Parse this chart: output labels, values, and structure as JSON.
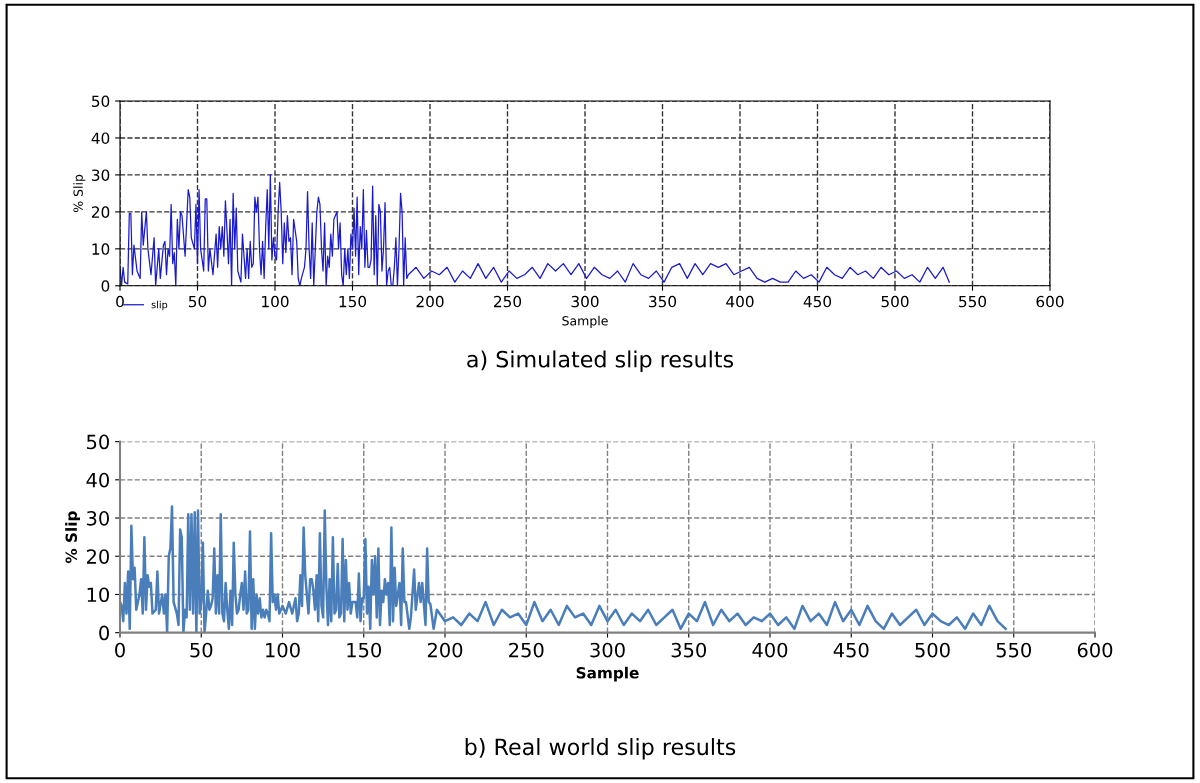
{
  "chart_data": [
    {
      "type": "line",
      "title": "a) Simulated slip results",
      "xlabel": "Sample",
      "ylabel": "% Slip",
      "xlim": [
        0,
        600
      ],
      "xticks": [
        0,
        50,
        100,
        150,
        200,
        250,
        300,
        350,
        400,
        450,
        500,
        550,
        600
      ],
      "ylim": [
        0,
        50
      ],
      "yticks": [
        0,
        10,
        20,
        30,
        40,
        50
      ],
      "grid": true,
      "legend": "bottom left",
      "line_style": "solid",
      "series": [
        {
          "name": "slip",
          "color": "#1a1acc",
          "x": [
            0,
            1,
            2,
            3,
            5,
            6,
            7,
            8,
            9,
            11,
            13,
            14,
            15,
            17,
            18,
            20,
            22,
            23,
            25,
            26,
            28,
            29,
            30,
            31,
            32,
            33,
            34,
            35,
            36,
            37,
            38,
            39,
            40,
            42,
            44,
            45,
            46,
            48,
            49,
            50,
            51,
            52,
            54,
            55,
            56,
            57,
            58,
            60,
            62,
            63,
            64,
            65,
            66,
            67,
            68,
            69,
            70,
            71,
            72,
            73,
            74,
            75,
            76,
            78,
            79,
            80,
            81,
            82,
            83,
            84,
            85,
            86,
            87,
            88,
            89,
            90,
            91,
            92,
            93,
            94,
            95,
            96,
            97,
            98,
            99,
            100,
            101,
            102,
            103,
            104,
            105,
            106,
            107,
            108,
            109,
            110,
            111,
            112,
            113,
            114,
            115,
            116,
            117,
            119,
            120,
            121,
            122,
            123,
            124,
            125,
            126,
            127,
            128,
            129,
            130,
            131,
            132,
            133,
            134,
            135,
            136,
            137,
            138,
            139,
            140,
            141,
            142,
            143,
            144,
            145,
            146,
            147,
            148,
            149,
            150,
            151,
            152,
            153,
            154,
            155,
            156,
            157,
            158,
            159,
            160,
            161,
            162,
            163,
            164,
            165,
            166,
            167,
            168,
            169,
            170,
            171,
            172,
            173,
            174,
            175,
            176,
            177,
            178,
            179,
            180,
            181,
            182,
            183,
            184,
            185,
            186,
            191,
            196,
            201,
            206,
            211,
            216,
            221,
            226,
            231,
            236,
            241,
            246,
            251,
            256,
            261,
            266,
            271,
            276,
            281,
            286,
            291,
            296,
            301,
            306,
            311,
            316,
            321,
            326,
            331,
            336,
            341,
            346,
            351,
            356,
            361,
            366,
            371,
            376,
            381,
            386,
            391,
            396,
            401,
            406,
            411,
            416,
            421,
            426,
            431,
            436,
            441,
            446,
            451,
            456,
            461,
            466,
            471,
            476,
            481,
            486,
            491,
            496,
            501,
            506,
            511,
            516,
            521,
            526,
            531,
            535
          ],
          "values": [
            5,
            0,
            5,
            1,
            0.5,
            19.5,
            19.5,
            3,
            11,
            4,
            2,
            20,
            11,
            20,
            10,
            3,
            13,
            0,
            10,
            2,
            11,
            12,
            3,
            10,
            8,
            22,
            6,
            9,
            0,
            18,
            10,
            20,
            19,
            8,
            26,
            24,
            13,
            10,
            22,
            6,
            26,
            10,
            4,
            23.5,
            23.5,
            4,
            10,
            3,
            14,
            5,
            16,
            10,
            16,
            8,
            23,
            15,
            6,
            18,
            0,
            25,
            10,
            21,
            4,
            1,
            14,
            8,
            2,
            10,
            2,
            12,
            5,
            6,
            24,
            20,
            24,
            10,
            3,
            12,
            2,
            16,
            26,
            10,
            30,
            7,
            13,
            8,
            7,
            20,
            28,
            20,
            6,
            17,
            9,
            19,
            12,
            13,
            3,
            18,
            15,
            12,
            2,
            0,
            2,
            5,
            10,
            25.5,
            10,
            2,
            17,
            0,
            10,
            20,
            24,
            22,
            10,
            4,
            17,
            0,
            8,
            5,
            14,
            8,
            18,
            19,
            20,
            10,
            17,
            3,
            0,
            10,
            3,
            10,
            2,
            14,
            10,
            21,
            8,
            24,
            3,
            16,
            10,
            26,
            5,
            15,
            5,
            5,
            7,
            27,
            3,
            19,
            0,
            22,
            20,
            4,
            10,
            22.5,
            0,
            4,
            5,
            0,
            0,
            5,
            13,
            0,
            10,
            25,
            20,
            0,
            13,
            2,
            3,
            5,
            2,
            4,
            3,
            5,
            1,
            4,
            2,
            6,
            2,
            5,
            1,
            4,
            2,
            3,
            5,
            2,
            6,
            4,
            6,
            3,
            6,
            2,
            5,
            3,
            2,
            4,
            1,
            6,
            3,
            2,
            4,
            1,
            5,
            6,
            2,
            6,
            3,
            6,
            5,
            6,
            3,
            4,
            5,
            2,
            1,
            2,
            1,
            1,
            4,
            2,
            3,
            1,
            5,
            3,
            2,
            5,
            3,
            4,
            2,
            5,
            3,
            4,
            2,
            3,
            1,
            5,
            2,
            5,
            1
          ]
        }
      ]
    },
    {
      "type": "line",
      "title": "b) Real world slip results",
      "xlabel": "Sample",
      "ylabel": "% Slip",
      "xlim": [
        0,
        600
      ],
      "xticks": [
        0,
        50,
        100,
        150,
        200,
        250,
        300,
        350,
        400,
        450,
        500,
        550,
        600
      ],
      "ylim": [
        0,
        50
      ],
      "yticks": [
        0,
        10,
        20,
        30,
        40,
        50
      ],
      "grid": true,
      "line_style": "solid",
      "series": [
        {
          "color": "#4a7ebb",
          "x": [
            0,
            1,
            2,
            3,
            4,
            5,
            6,
            7,
            8,
            9,
            10,
            12,
            13,
            14,
            15,
            16,
            17,
            18,
            19,
            20,
            22,
            23,
            24,
            26,
            27,
            28,
            29,
            30,
            31,
            32,
            33,
            35,
            36,
            37,
            38,
            39,
            40,
            41,
            42,
            43,
            44,
            45,
            46,
            47,
            48,
            49,
            50,
            51,
            52,
            53,
            54,
            55,
            56,
            57,
            58,
            59,
            60,
            61,
            62,
            63,
            64,
            65,
            66,
            67,
            68,
            69,
            70,
            71,
            72,
            73,
            74,
            75,
            76,
            77,
            78,
            79,
            80,
            81,
            82,
            83,
            84,
            85,
            86,
            87,
            88,
            89,
            90,
            91,
            92,
            93,
            94,
            95,
            96,
            97,
            98,
            100,
            102,
            104,
            106,
            108,
            109,
            110,
            111,
            112,
            113,
            114,
            115,
            116,
            117,
            118,
            119,
            120,
            121,
            122,
            123,
            124,
            125,
            126,
            127,
            128,
            129,
            130,
            131,
            132,
            133,
            134,
            135,
            136,
            137,
            138,
            139,
            140,
            141,
            142,
            143,
            144,
            145,
            146,
            147,
            148,
            149,
            150,
            151,
            152,
            153,
            154,
            155,
            156,
            157,
            158,
            159,
            160,
            161,
            162,
            163,
            164,
            165,
            166,
            167,
            168,
            169,
            170,
            171,
            172,
            173,
            174,
            175,
            176,
            178,
            179,
            181,
            182,
            184,
            185,
            186,
            188,
            189,
            190,
            191,
            193,
            195,
            200,
            205,
            210,
            215,
            220,
            225,
            230,
            235,
            240,
            245,
            250,
            255,
            260,
            265,
            270,
            275,
            280,
            285,
            290,
            295,
            300,
            305,
            310,
            315,
            320,
            325,
            330,
            335,
            340,
            345,
            350,
            355,
            360,
            365,
            370,
            375,
            380,
            385,
            390,
            395,
            400,
            405,
            410,
            415,
            420,
            425,
            430,
            435,
            440,
            445,
            450,
            455,
            460,
            465,
            470,
            475,
            480,
            485,
            490,
            495,
            500,
            505,
            510,
            515,
            520,
            525,
            530,
            535,
            540,
            545
          ],
          "values": [
            8,
            7,
            3,
            13,
            5,
            16,
            1,
            28,
            14,
            17,
            6,
            10,
            14,
            5,
            25,
            6,
            15,
            12,
            13,
            5,
            6,
            16,
            5,
            10,
            5,
            10,
            0,
            20,
            22,
            33,
            8,
            5,
            2,
            27,
            25,
            0,
            6,
            4,
            31,
            6,
            31,
            5,
            31.5,
            0,
            32,
            5,
            8,
            23.5,
            0,
            5,
            11,
            6,
            7,
            9,
            22,
            5,
            15,
            5,
            31,
            5,
            3,
            13,
            6,
            1,
            11,
            2,
            23.5,
            10,
            5,
            6,
            10,
            13,
            6,
            16,
            5,
            6,
            26.5,
            1,
            14,
            1,
            10,
            5,
            9,
            4,
            6,
            4,
            6,
            5,
            3,
            26,
            8,
            10,
            6,
            10,
            5,
            7,
            5,
            8,
            5,
            9,
            3,
            5,
            15,
            7,
            27.5,
            15,
            10,
            5,
            14,
            14,
            11,
            6,
            15,
            3,
            26,
            7,
            4,
            32,
            12,
            2,
            14,
            3,
            25,
            5,
            6,
            18,
            4,
            5,
            24.5,
            3,
            19,
            6,
            13,
            5,
            8,
            8,
            8,
            4,
            15.5,
            3,
            9,
            9,
            24.5,
            5,
            12,
            1,
            19,
            10,
            20,
            4,
            22,
            2,
            11,
            8,
            14,
            10,
            13,
            2,
            27.5,
            3,
            17,
            7,
            10,
            13,
            2,
            22,
            8,
            8,
            1,
            4,
            16.5,
            6,
            13,
            8,
            13,
            2,
            22,
            8,
            7.5,
            1,
            6,
            3,
            4,
            2,
            5,
            3,
            8,
            2,
            6,
            4,
            5,
            2,
            8,
            3,
            6,
            2,
            7,
            4,
            5,
            2,
            7,
            3,
            6,
            2,
            5,
            3,
            6,
            2,
            4,
            6,
            1,
            5,
            3,
            8,
            2,
            6,
            3,
            5,
            2,
            4,
            3,
            5,
            2,
            4,
            1,
            7,
            3,
            5,
            2,
            8,
            3,
            6,
            2,
            7,
            3,
            1,
            5,
            2,
            4,
            6,
            2,
            5,
            3,
            2,
            4,
            1,
            5,
            2,
            7,
            3,
            1
          ]
        }
      ]
    }
  ]
}
